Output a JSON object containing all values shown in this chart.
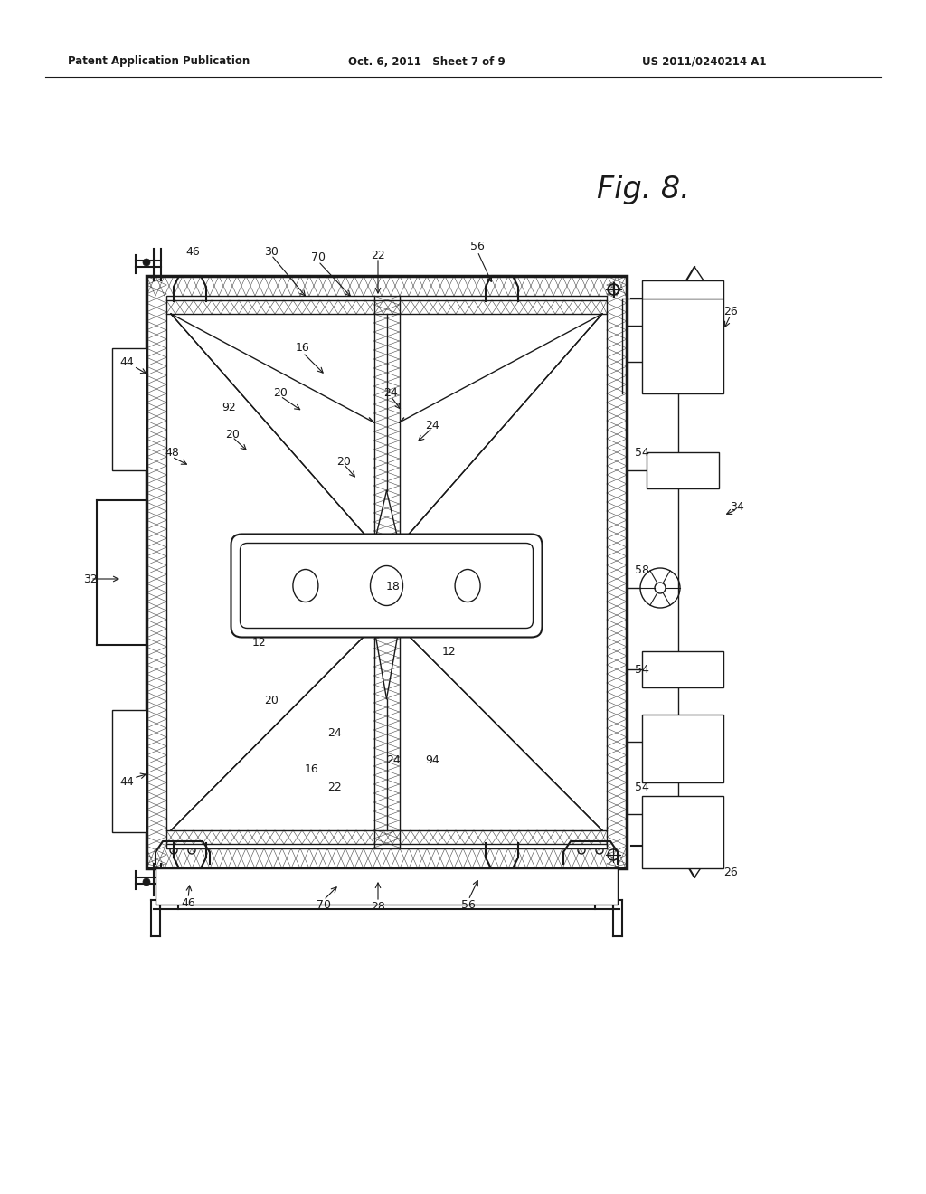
{
  "bg_color": "#ffffff",
  "line_color": "#1a1a1a",
  "header_left": "Patent Application Publication",
  "header_mid": "Oct. 6, 2011   Sheet 7 of 9",
  "header_right": "US 2011/0240214 A1",
  "fig_label": "Fig. 8."
}
